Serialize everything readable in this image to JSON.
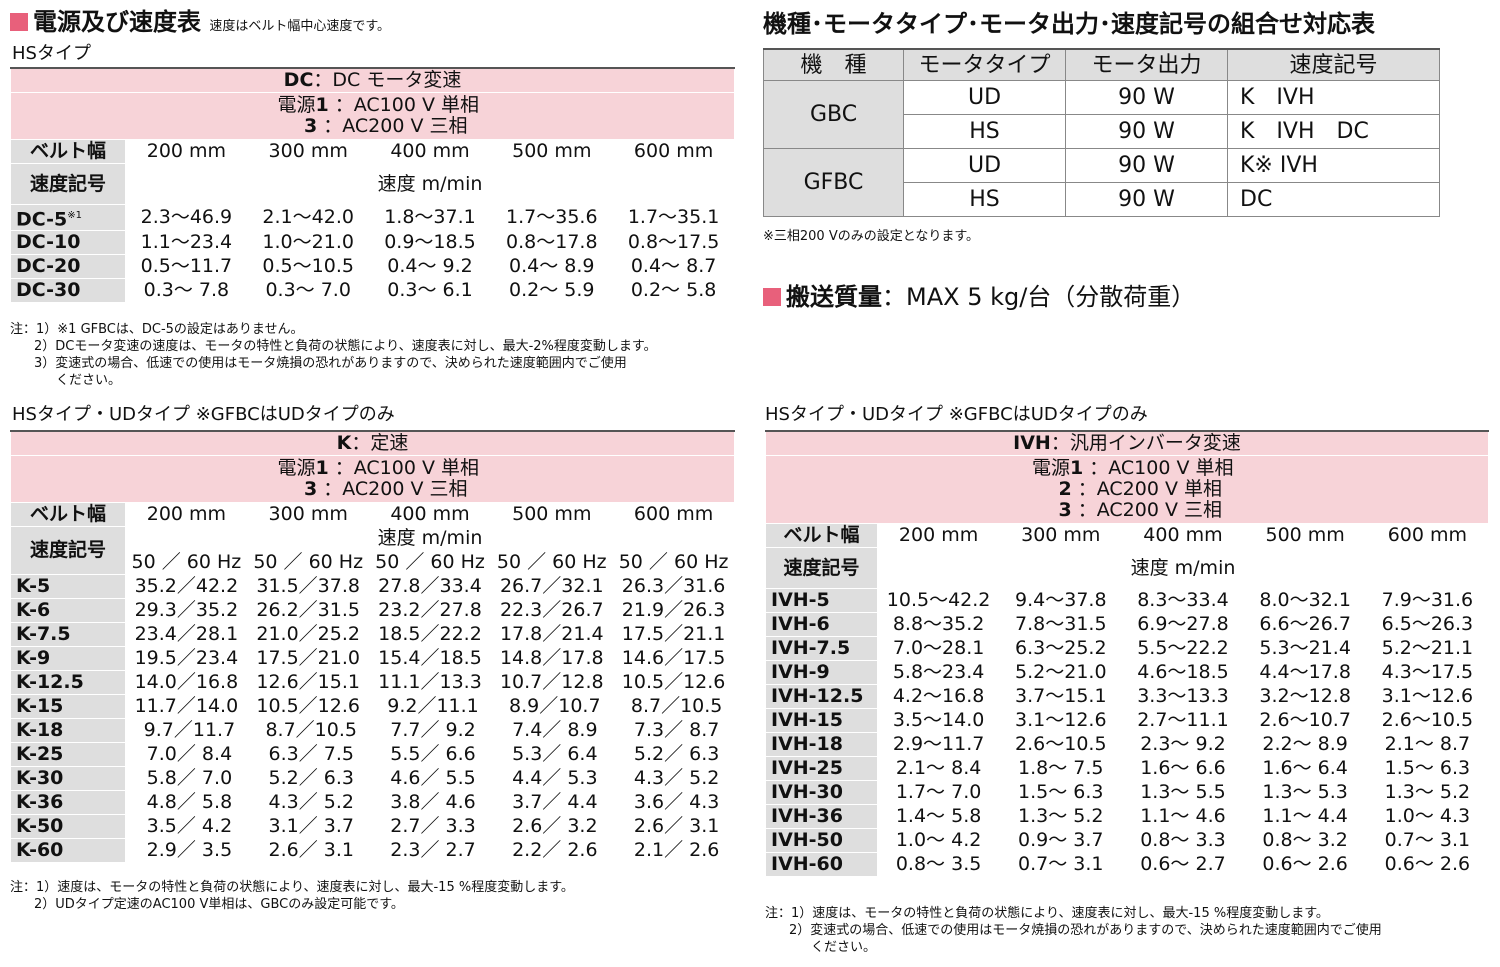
{
  "power_speed_title": "電源及び速度表",
  "power_speed_note": "速度はベルト幅中心速度です。",
  "dc": {
    "type_label": "HSタイプ",
    "banner_code": "DC",
    "banner_text": "：DC モータ変速",
    "power_label": "電源",
    "power": [
      {
        "num": "1",
        "value": "：AC100 V 単相"
      },
      {
        "num": "3",
        "value": "：AC200 V 三相"
      }
    ],
    "belt_label": "ベルト幅",
    "widths": [
      "200 mm",
      "300 mm",
      "400 mm",
      "500 mm",
      "600 mm"
    ],
    "speed_code_label": "速度記号",
    "speed_unit": "速度 m/min",
    "rows": [
      {
        "code": "DC-5",
        "sup": "※1",
        "values": [
          "2.3～46.9",
          "2.1～42.0",
          "1.8～37.1",
          "1.7～35.6",
          "1.7～35.1"
        ]
      },
      {
        "code": "DC-10",
        "values": [
          "1.1～23.4",
          "1.0～21.0",
          "0.9～18.5",
          "0.8～17.8",
          "0.8～17.5"
        ]
      },
      {
        "code": "DC-20",
        "values": [
          "0.5～11.7",
          "0.5～10.5",
          "0.4～ 9.2",
          "0.4～ 8.9",
          "0.4～ 8.7"
        ]
      },
      {
        "code": "DC-30",
        "values": [
          "0.3～ 7.8",
          "0.3～ 7.0",
          "0.3～ 6.1",
          "0.2～ 5.9",
          "0.2～ 5.8"
        ]
      }
    ],
    "notes": [
      "注：1）※1 GFBCは、DC-5の設定はありません。",
      "2）DCモータ変速の速度は、モータの特性と負荷の状態により、速度表に対し、最大-2%程度変動します。",
      "3）変速式の場合、低速での使用はモータ焼損の恐れがありますので、決められた速度範囲内でご使用",
      "ください。"
    ]
  },
  "k": {
    "type_label": "HSタイプ・UDタイプ ※GFBCはUDタイプのみ",
    "banner_code": "K",
    "banner_text": "：定速",
    "power_label": "電源",
    "power": [
      {
        "num": "1",
        "value": "：AC100 V 単相"
      },
      {
        "num": "3",
        "value": "：AC200 V 三相"
      }
    ],
    "belt_label": "ベルト幅",
    "widths": [
      "200 mm",
      "300 mm",
      "400 mm",
      "500 mm",
      "600 mm"
    ],
    "speed_code_label": "速度記号",
    "speed_unit": "速度 m/min",
    "hz_label": "50 ／ 60 Hz",
    "rows": [
      {
        "code": "K-5",
        "values": [
          "35.2／42.2",
          "31.5／37.8",
          "27.8／33.4",
          "26.7／32.1",
          "26.3／31.6"
        ]
      },
      {
        "code": "K-6",
        "values": [
          "29.3／35.2",
          "26.2／31.5",
          "23.2／27.8",
          "22.3／26.7",
          "21.9／26.3"
        ]
      },
      {
        "code": "K-7.5",
        "values": [
          "23.4／28.1",
          "21.0／25.2",
          "18.5／22.2",
          "17.8／21.4",
          "17.5／21.1"
        ]
      },
      {
        "code": "K-9",
        "values": [
          "19.5／23.4",
          "17.5／21.0",
          "15.4／18.5",
          "14.8／17.8",
          "14.6／17.5"
        ]
      },
      {
        "code": "K-12.5",
        "values": [
          "14.0／16.8",
          "12.6／15.1",
          "11.1／13.3",
          "10.7／12.8",
          "10.5／12.6"
        ]
      },
      {
        "code": "K-15",
        "values": [
          "11.7／14.0",
          "10.5／12.6",
          " 9.2／11.1",
          " 8.9／10.7",
          " 8.7／10.5"
        ]
      },
      {
        "code": "K-18",
        "values": [
          " 9.7／11.7",
          " 8.7／10.5",
          " 7.7／ 9.2",
          " 7.4／ 8.9",
          " 7.3／ 8.7"
        ]
      },
      {
        "code": "K-25",
        "values": [
          " 7.0／ 8.4",
          " 6.3／ 7.5",
          " 5.5／ 6.6",
          " 5.3／ 6.4",
          " 5.2／ 6.3"
        ]
      },
      {
        "code": "K-30",
        "values": [
          " 5.8／ 7.0",
          " 5.2／ 6.3",
          " 4.6／ 5.5",
          " 4.4／ 5.3",
          " 4.3／ 5.2"
        ]
      },
      {
        "code": "K-36",
        "values": [
          " 4.8／ 5.8",
          " 4.3／ 5.2",
          " 3.8／ 4.6",
          " 3.7／ 4.4",
          " 3.6／ 4.3"
        ]
      },
      {
        "code": "K-50",
        "values": [
          " 3.5／ 4.2",
          " 3.1／ 3.7",
          " 2.7／ 3.3",
          " 2.6／ 3.2",
          " 2.6／ 3.1"
        ]
      },
      {
        "code": "K-60",
        "values": [
          " 2.9／ 3.5",
          " 2.6／ 3.1",
          " 2.3／ 2.7",
          " 2.2／ 2.6",
          " 2.1／ 2.6"
        ]
      }
    ],
    "notes": [
      "注：1）速度は、モータの特性と負荷の状態により、速度表に対し、最大-15 %程度変動します。",
      "2）UDタイプ定速のAC100 V単相は、GBCのみ設定可能です。"
    ]
  },
  "combo": {
    "title": "機種･モータタイプ･モータ出力･速度記号の組合せ対応表",
    "headers": [
      "機　種",
      "モータタイプ",
      "モータ出力",
      "速度記号"
    ],
    "rows": [
      {
        "model": "GBC",
        "type": "UD",
        "output": "90 W",
        "code": "K　IVH"
      },
      {
        "model": "",
        "type": "HS",
        "output": "90 W",
        "code": "K　IVH　DC"
      },
      {
        "model": "GFBC",
        "type": "UD",
        "output": "90 W",
        "code": "K※ IVH"
      },
      {
        "model": "",
        "type": "HS",
        "output": "90 W",
        "code": "DC"
      }
    ],
    "note": "※三相200 Vのみの設定となります。"
  },
  "mass": {
    "label": "搬送質量",
    "value": "：MAX 5 kg/台（分散荷重）"
  },
  "ivh": {
    "type_label": "HSタイプ・UDタイプ ※GFBCはUDタイプのみ",
    "banner_code": "IVH",
    "banner_text": "：汎用インバータ変速",
    "power_label": "電源",
    "power": [
      {
        "num": "1",
        "value": "：AC100 V 単相"
      },
      {
        "num": "2",
        "value": "：AC200 V 単相"
      },
      {
        "num": "3",
        "value": "：AC200 V 三相"
      }
    ],
    "belt_label": "ベルト幅",
    "widths": [
      "200 mm",
      "300 mm",
      "400 mm",
      "500 mm",
      "600 mm"
    ],
    "speed_code_label": "速度記号",
    "speed_unit": "速度 m/min",
    "rows": [
      {
        "code": "IVH-5",
        "values": [
          "10.5～42.2",
          "9.4～37.8",
          "8.3～33.4",
          "8.0～32.1",
          "7.9～31.6"
        ]
      },
      {
        "code": "IVH-6",
        "values": [
          "8.8～35.2",
          "7.8～31.5",
          "6.9～27.8",
          "6.6～26.7",
          "6.5～26.3"
        ]
      },
      {
        "code": "IVH-7.5",
        "values": [
          "7.0～28.1",
          "6.3～25.2",
          "5.5～22.2",
          "5.3～21.4",
          "5.2～21.1"
        ]
      },
      {
        "code": "IVH-9",
        "values": [
          "5.8～23.4",
          "5.2～21.0",
          "4.6～18.5",
          "4.4～17.8",
          "4.3～17.5"
        ]
      },
      {
        "code": "IVH-12.5",
        "values": [
          "4.2～16.8",
          "3.7～15.1",
          "3.3～13.3",
          "3.2～12.8",
          "3.1～12.6"
        ]
      },
      {
        "code": "IVH-15",
        "values": [
          "3.5～14.0",
          "3.1～12.6",
          "2.7～11.1",
          "2.6～10.7",
          "2.6～10.5"
        ]
      },
      {
        "code": "IVH-18",
        "values": [
          "2.9～11.7",
          "2.6～10.5",
          "2.3～ 9.2",
          "2.2～ 8.9",
          "2.1～ 8.7"
        ]
      },
      {
        "code": "IVH-25",
        "values": [
          "2.1～ 8.4",
          "1.8～ 7.5",
          "1.6～ 6.6",
          "1.6～ 6.4",
          "1.5～ 6.3"
        ]
      },
      {
        "code": "IVH-30",
        "values": [
          "1.7～ 7.0",
          "1.5～ 6.3",
          "1.3～ 5.5",
          "1.3～ 5.3",
          "1.3～ 5.2"
        ]
      },
      {
        "code": "IVH-36",
        "values": [
          "1.4～ 5.8",
          "1.3～ 5.2",
          "1.1～ 4.6",
          "1.1～ 4.4",
          "1.0～ 4.3"
        ]
      },
      {
        "code": "IVH-50",
        "values": [
          "1.0～ 4.2",
          "0.9～ 3.7",
          "0.8～ 3.3",
          "0.8～ 3.2",
          "0.7～ 3.1"
        ]
      },
      {
        "code": "IVH-60",
        "values": [
          "0.8～ 3.5",
          "0.7～ 3.1",
          "0.6～ 2.7",
          "0.6～ 2.6",
          "0.6～ 2.6"
        ]
      }
    ],
    "notes": [
      "注：1）速度は、モータの特性と負荷の状態により、速度表に対し、最大-15 %程度変動します。",
      "2）変速式の場合、低速での使用はモータ焼損の恐れがありますので、決められた速度範囲内でご使用",
      "ください。"
    ]
  }
}
